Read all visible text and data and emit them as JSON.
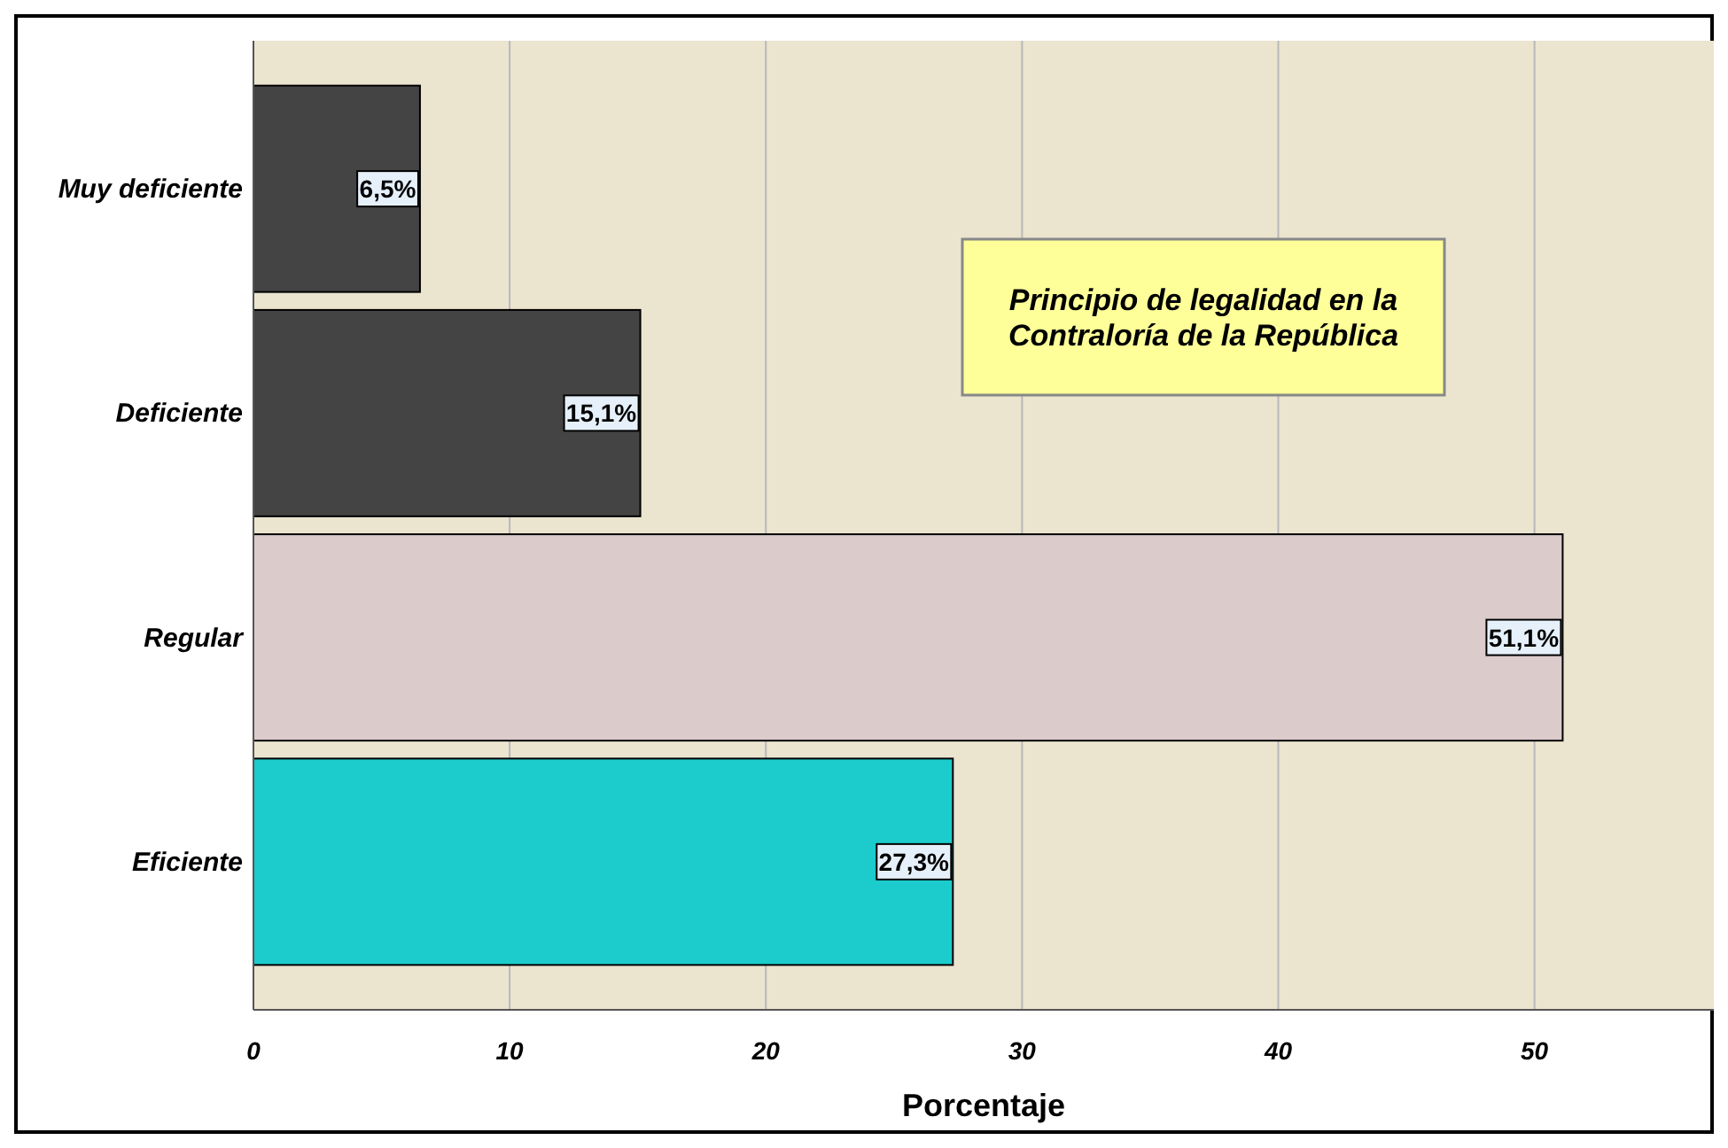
{
  "chart_data": {
    "type": "bar",
    "orientation": "horizontal",
    "xlabel": "Porcentaje",
    "categories": [
      "Muy deficiente",
      "Deficiente",
      "Regular",
      "Eficiente"
    ],
    "values": [
      6.5,
      15.1,
      51.1,
      27.3
    ],
    "colors": [
      "#444444",
      "#444444",
      "#dccbcb",
      "#1ccccc"
    ],
    "value_labels": [
      "6,5%",
      "15,1%",
      "51,1%",
      "27,3%"
    ],
    "xlim": [
      0,
      57
    ],
    "xticks": [
      0,
      10,
      20,
      30,
      40,
      50
    ],
    "grid": "x",
    "annotations": [
      "Principio de legalidad en la Contraloría de la República"
    ]
  }
}
